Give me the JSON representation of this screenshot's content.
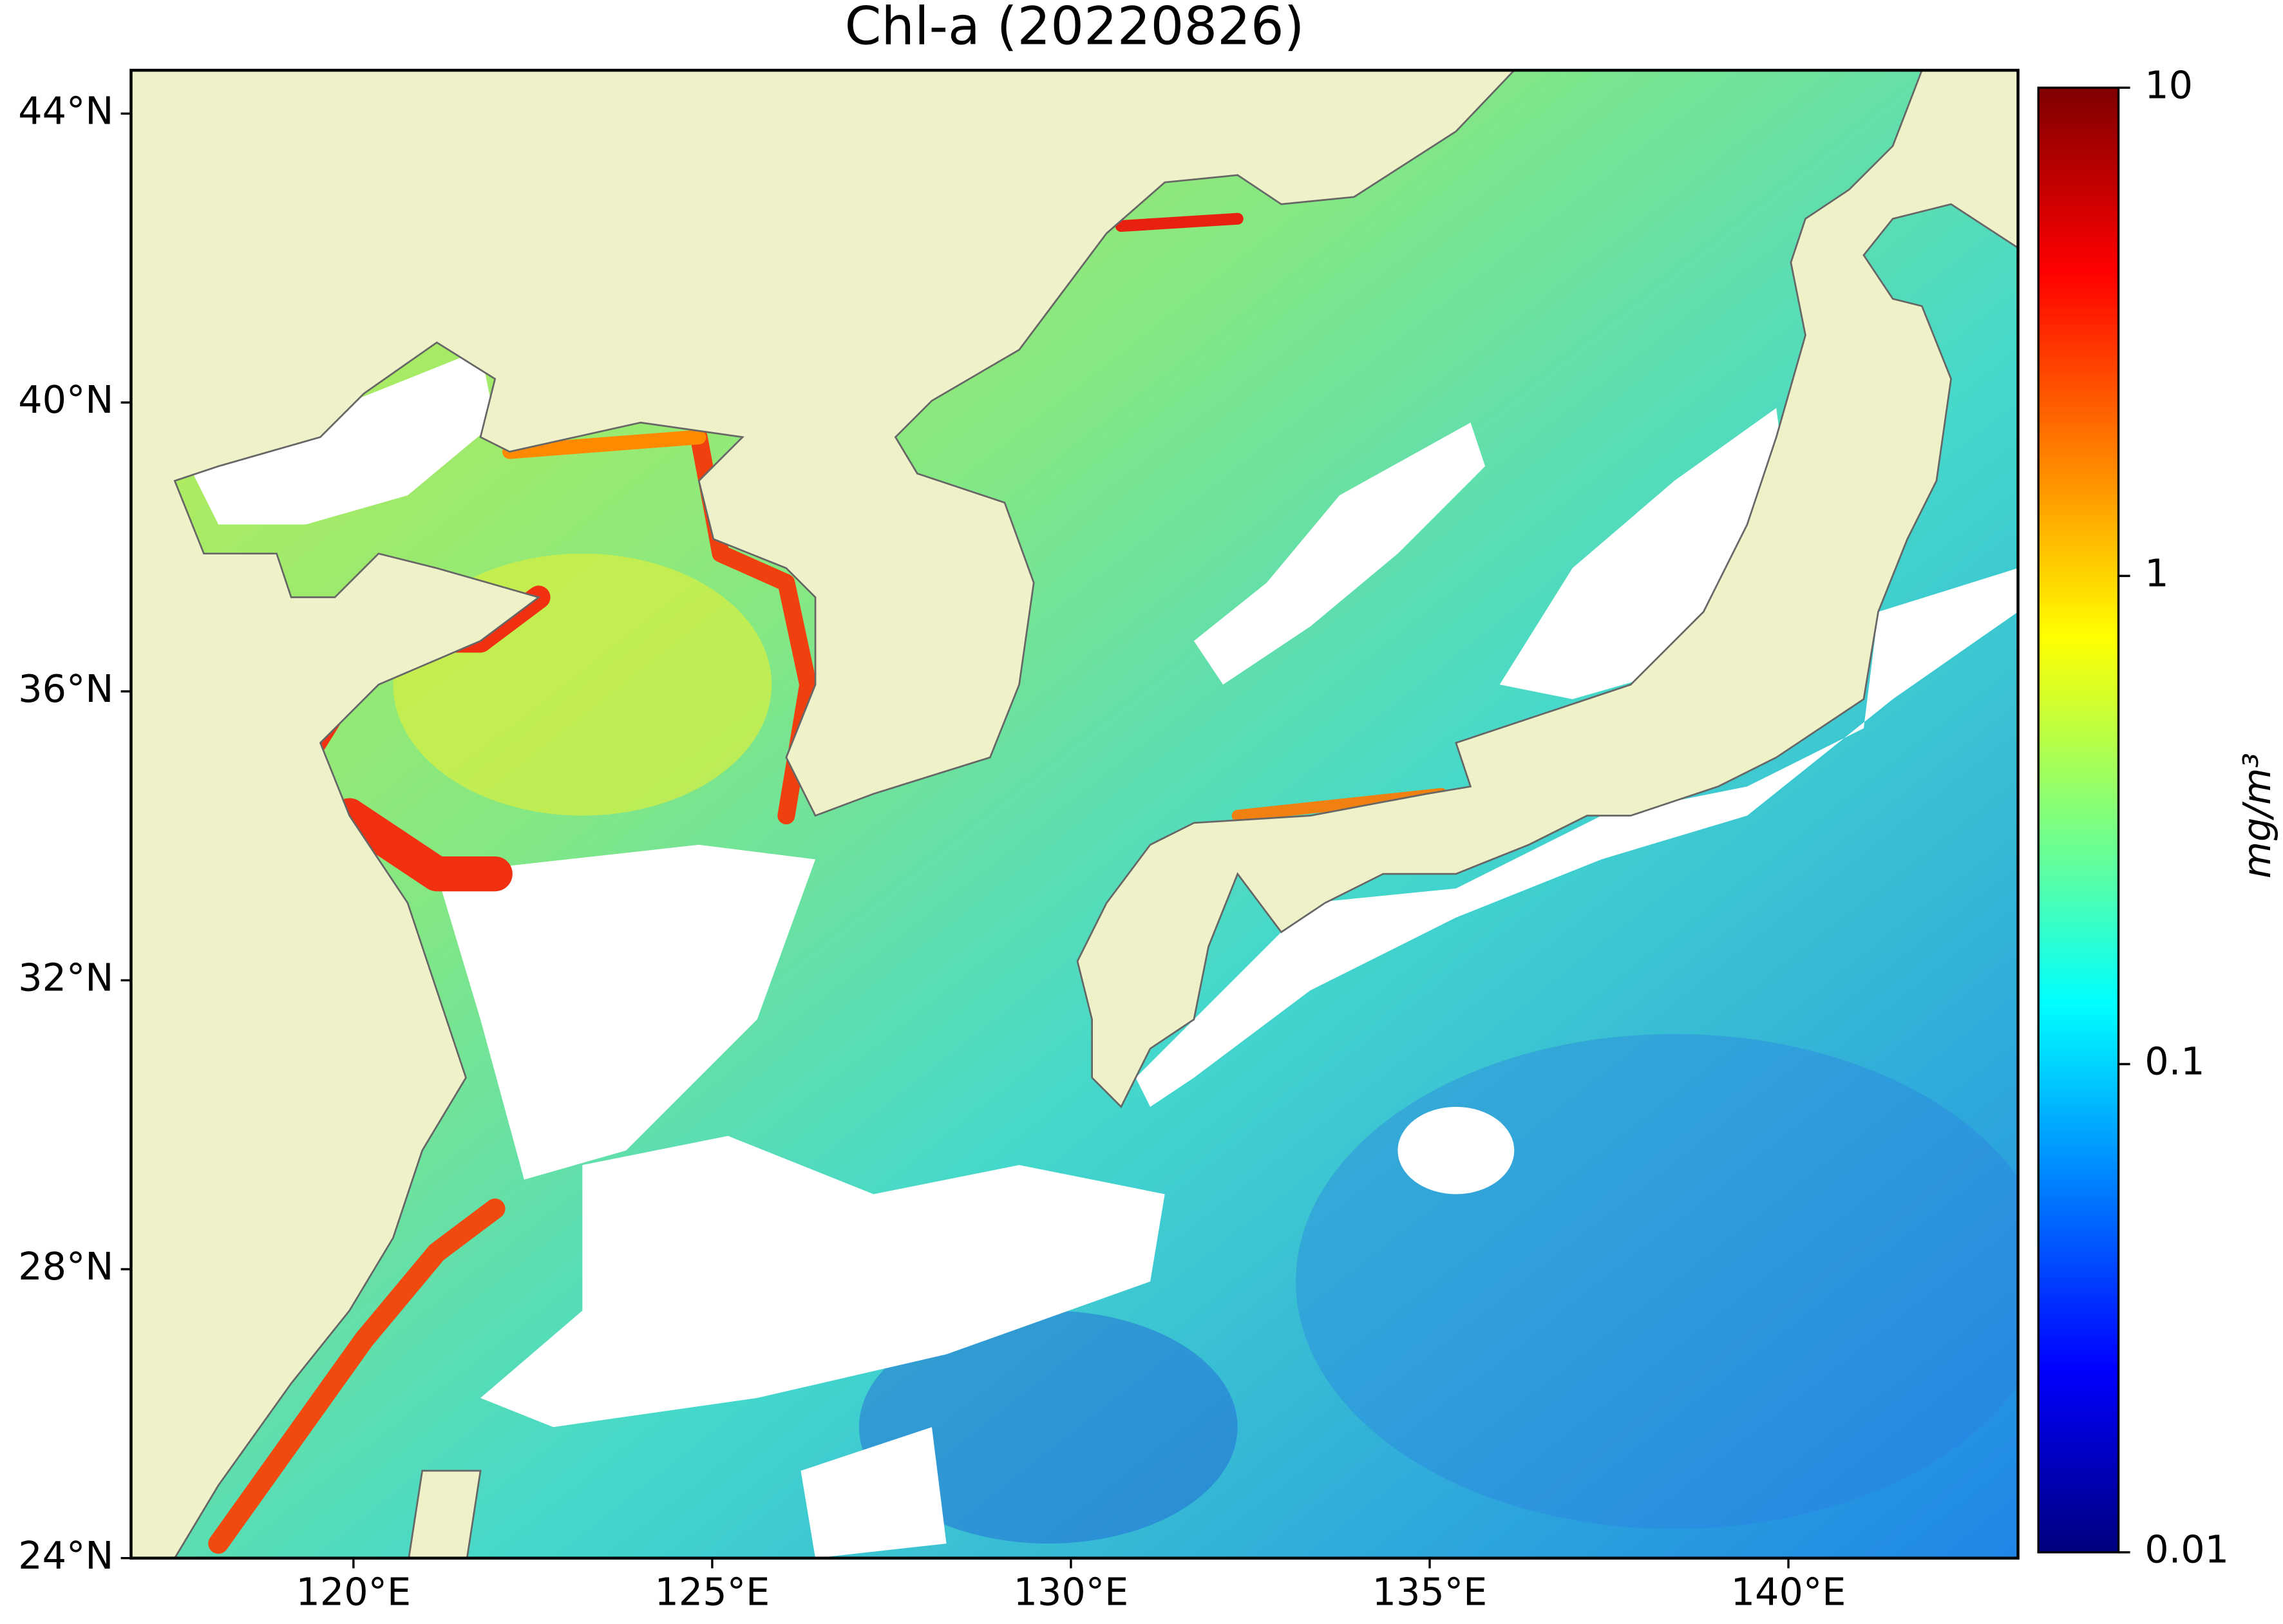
{
  "chart_data": {
    "type": "map",
    "title": "Chl-a (20220826)",
    "xlim": [
      116.9,
      143.2
    ],
    "ylim": [
      24,
      44.6
    ],
    "xticks": [
      {
        "value": 120,
        "label": "120°E"
      },
      {
        "value": 125,
        "label": "125°E"
      },
      {
        "value": 130,
        "label": "130°E"
      },
      {
        "value": 135,
        "label": "135°E"
      },
      {
        "value": 140,
        "label": "140°E"
      }
    ],
    "yticks": [
      {
        "value": 24,
        "label": "24°N"
      },
      {
        "value": 28,
        "label": "28°N"
      },
      {
        "value": 32,
        "label": "32°N"
      },
      {
        "value": 36,
        "label": "36°N"
      },
      {
        "value": 40,
        "label": "40°N"
      },
      {
        "value": 44,
        "label": "44°N"
      }
    ],
    "colorbar": {
      "label": "mg/m³",
      "scale": "log",
      "lim": [
        0.01,
        10
      ],
      "ticks": [
        0.01,
        0.1,
        1,
        10
      ],
      "colormap": [
        "#00007f",
        "#0000ff",
        "#007fff",
        "#00ffff",
        "#7fff7f",
        "#ffff00",
        "#ff7f00",
        "#ff0000",
        "#7f0000"
      ]
    }
  }
}
